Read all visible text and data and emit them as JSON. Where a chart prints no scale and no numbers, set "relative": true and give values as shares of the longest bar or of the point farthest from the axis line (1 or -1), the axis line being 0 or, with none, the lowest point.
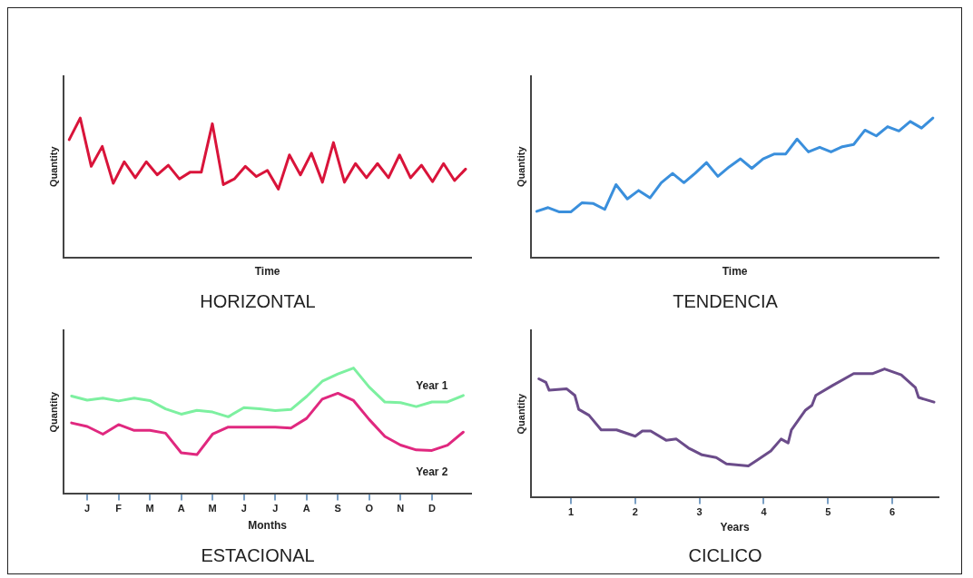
{
  "chart_data": [
    {
      "type": "line",
      "title": "HORIZONTAL",
      "xlabel": "Time",
      "ylabel": "Quantity",
      "relative": true,
      "tick_labels": false,
      "categories": [
        null,
        null,
        null,
        null,
        null,
        null,
        null,
        null,
        null,
        null,
        null,
        null,
        null,
        null,
        null,
        null,
        null,
        null,
        null,
        null,
        null,
        null,
        null,
        null,
        null,
        null,
        null,
        null,
        null,
        null,
        null,
        null,
        null,
        null,
        null,
        null,
        null
      ],
      "series": [
        {
          "color": "#d9143a",
          "values": [
            0.845,
            1,
            0.653,
            0.796,
            0.531,
            0.686,
            0.571,
            0.686,
            0.592,
            0.661,
            0.563,
            0.612,
            0.612,
            0.959,
            0.522,
            0.563,
            0.653,
            0.58,
            0.624,
            0.49,
            0.735,
            0.592,
            0.747,
            0.539,
            0.824,
            0.539,
            0.673,
            0.571,
            0.673,
            0.571,
            0.735,
            0.571,
            0.661,
            0.543,
            0.673,
            0.551,
            0.633
          ]
        }
      ]
    },
    {
      "type": "line",
      "title": "TENDENCIA",
      "xlabel": "Time",
      "ylabel": "Quantity",
      "relative": true,
      "tick_labels": false,
      "categories": [
        null,
        null,
        null,
        null,
        null,
        null,
        null,
        null,
        null,
        null,
        null,
        null,
        null,
        null,
        null,
        null,
        null,
        null,
        null,
        null,
        null,
        null,
        null,
        null,
        null,
        null,
        null,
        null,
        null,
        null,
        null,
        null,
        null,
        null,
        null,
        null
      ],
      "series": [
        {
          "color": "#3a8fdc",
          "values": [
            0.33,
            0.357,
            0.326,
            0.326,
            0.392,
            0.386,
            0.344,
            0.522,
            0.419,
            0.48,
            0.427,
            0.536,
            0.602,
            0.536,
            0.604,
            0.68,
            0.581,
            0.649,
            0.707,
            0.639,
            0.707,
            0.742,
            0.742,
            0.849,
            0.757,
            0.79,
            0.757,
            0.794,
            0.81,
            0.913,
            0.872,
            0.938,
            0.907,
            0.975,
            0.928,
            1
          ]
        }
      ]
    },
    {
      "type": "line",
      "title": "ESTACIONAL",
      "xlabel": "Months",
      "ylabel": "Quantity",
      "relative": true,
      "tick_labels": "x",
      "categories": [
        null,
        "J",
        null,
        "F",
        null,
        "M",
        null,
        "A",
        null,
        "M",
        null,
        "J",
        null,
        "J",
        null,
        "A",
        null,
        "S",
        null,
        "O",
        null,
        "N",
        null,
        "D",
        null,
        null
      ],
      "series": [
        {
          "name": "Year 1",
          "color": "#7df0a0",
          "values": [
            0.778,
            0.745,
            0.762,
            0.739,
            0.762,
            0.742,
            0.676,
            0.634,
            0.664,
            0.651,
            0.613,
            0.686,
            0.677,
            0.663,
            0.671,
            0.774,
            0.895,
            0.953,
            1,
            0.849,
            0.73,
            0.725,
            0.694,
            0.731,
            0.731,
            0.782
          ]
        },
        {
          "name": "Year 2",
          "color": "#e0287f",
          "values": [
            0.564,
            0.536,
            0.475,
            0.551,
            0.505,
            0.505,
            0.483,
            0.327,
            0.312,
            0.475,
            0.531,
            0.531,
            0.531,
            0.531,
            0.523,
            0.6,
            0.753,
            0.8,
            0.742,
            0.591,
            0.457,
            0.388,
            0.35,
            0.346,
            0.388,
            0.491
          ]
        }
      ]
    },
    {
      "type": "line",
      "title": "CICLICO",
      "xlabel": "Years",
      "ylabel": "Quantity",
      "relative": true,
      "tick_labels": "x",
      "xlim": [
        0.38,
        6.72
      ],
      "xticks": [
        1,
        2,
        3,
        4,
        5,
        6
      ],
      "series": [
        {
          "color": "#6b4c8a",
          "x": [
            0.5,
            0.61,
            0.66,
            0.93,
            1.06,
            1.12,
            1.28,
            1.47,
            1.71,
            2,
            2.11,
            2.24,
            2.48,
            2.64,
            2.83,
            3.04,
            3.26,
            3.42,
            3.76,
            3.9,
            4.11,
            4.27,
            4.38,
            4.43,
            4.65,
            4.75,
            4.81,
            5.07,
            5.4,
            5.69,
            5.88,
            6.14,
            6.36,
            6.41,
            6.65
          ],
          "values": [
            0.923,
            0.895,
            0.834,
            0.846,
            0.794,
            0.686,
            0.64,
            0.526,
            0.526,
            0.477,
            0.517,
            0.517,
            0.446,
            0.455,
            0.385,
            0.332,
            0.311,
            0.262,
            0.246,
            0.292,
            0.363,
            0.455,
            0.425,
            0.526,
            0.68,
            0.717,
            0.794,
            0.871,
            0.963,
            0.963,
            1,
            0.954,
            0.855,
            0.778,
            0.742
          ]
        }
      ]
    }
  ]
}
